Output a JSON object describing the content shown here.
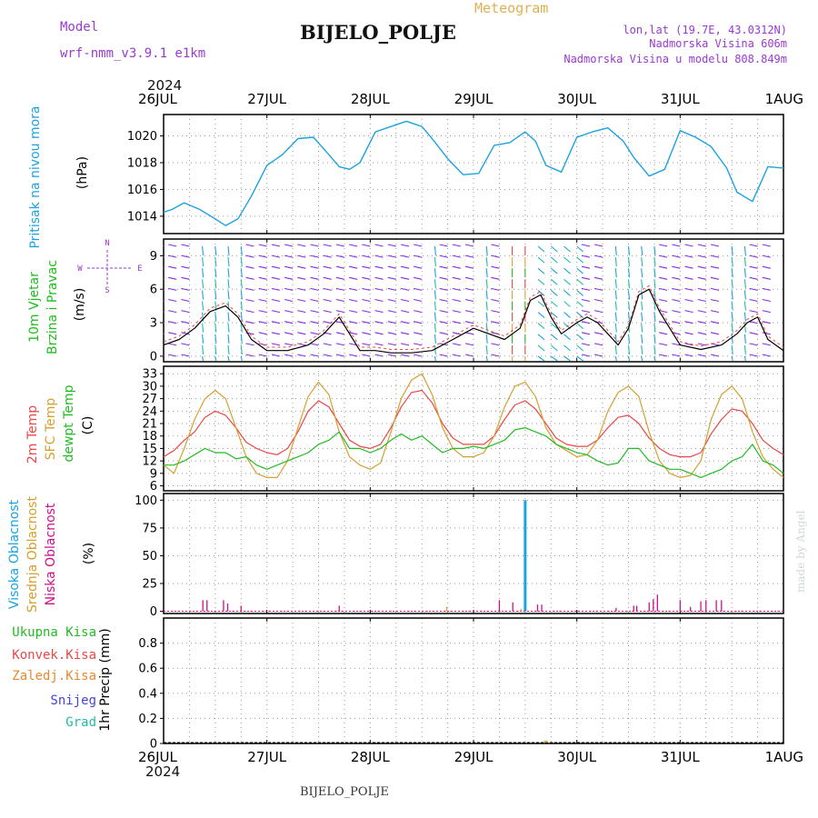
{
  "header": {
    "model_label": "Model",
    "model_name": "wrf-nmm_v3.9.1  e1km",
    "title": "BIJELO_POLJE",
    "subtitle": "Meteogram",
    "location": "lon,lat (19.7E, 43.0312N)",
    "altitude": "Nadmorska Visina 606m",
    "model_altitude": "Nadmorska Visina u modelu 808.849m",
    "year_top": "2024",
    "year_bottom": "2024",
    "footer_station": "BIJELO_POLJE",
    "watermark": "made by Angel"
  },
  "time_axis": {
    "labels": [
      "26JUL",
      "27JUL",
      "28JUL",
      "29JUL",
      "30JUL",
      "31JUL",
      "1AUG"
    ],
    "days": 6
  },
  "colors": {
    "pressure": "#1aa3e0",
    "wind_label": "#22bb22",
    "temp2m": "#e84848",
    "sfc_temp": "#d4a030",
    "dewpt": "#22bb22",
    "high_cloud": "#1aa3e0",
    "mid_cloud": "#d4a030",
    "low_cloud": "#cc1188",
    "total_precip": "#22bb22",
    "conv_precip": "#e84848",
    "frz_precip": "#e88830",
    "snow": "#4444dd",
    "hail": "#22bbaa",
    "header_purple": "#9a3ad0",
    "subtitle": "#e0b050"
  },
  "chart_data": [
    {
      "type": "line",
      "name": "pressure",
      "ylabel_lines": [
        "Pritisak na nivou mora",
        "(hPa)"
      ],
      "yticks": [
        1014,
        1016,
        1018,
        1020
      ],
      "ylim": [
        1012.7,
        1021.6
      ],
      "x_days": [
        0,
        0.08,
        0.2,
        0.35,
        0.5,
        0.6,
        0.72,
        0.85,
        1.0,
        1.15,
        1.3,
        1.45,
        1.6,
        1.7,
        1.8,
        1.9,
        2.05,
        2.2,
        2.35,
        2.5,
        2.62,
        2.75,
        2.9,
        3.05,
        3.2,
        3.35,
        3.5,
        3.6,
        3.7,
        3.85,
        4.0,
        4.15,
        4.3,
        4.45,
        4.55,
        4.7,
        4.85,
        5.0,
        5.15,
        5.3,
        5.45,
        5.55,
        5.7,
        5.85,
        6.0
      ],
      "values": [
        1014.3,
        1014.5,
        1015.0,
        1014.5,
        1013.8,
        1013.3,
        1013.8,
        1015.5,
        1017.8,
        1018.6,
        1019.8,
        1019.9,
        1018.6,
        1017.7,
        1017.5,
        1018.0,
        1020.3,
        1020.7,
        1021.1,
        1020.7,
        1019.6,
        1018.3,
        1017.1,
        1017.2,
        1019.3,
        1019.5,
        1020.3,
        1019.6,
        1017.8,
        1017.3,
        1019.9,
        1020.3,
        1020.6,
        1019.6,
        1018.4,
        1017.0,
        1017.5,
        1020.4,
        1019.9,
        1019.2,
        1017.6,
        1015.8,
        1015.1,
        1017.7,
        1017.6
      ]
    },
    {
      "type": "line",
      "name": "wind",
      "ylabel_lines": [
        "10m Vjetar",
        "Brzina i Pravac",
        "(m/s)"
      ],
      "compass": {
        "n": "N",
        "s": "S",
        "w": "W",
        "e": "E"
      },
      "yticks": [
        0,
        3,
        6,
        9
      ],
      "ylim": [
        -0.5,
        10.5
      ],
      "x_days": [
        0,
        0.15,
        0.3,
        0.45,
        0.6,
        0.72,
        0.85,
        1.0,
        1.2,
        1.4,
        1.55,
        1.7,
        1.8,
        1.9,
        2.05,
        2.2,
        2.4,
        2.6,
        2.8,
        3.0,
        3.15,
        3.3,
        3.45,
        3.55,
        3.65,
        3.75,
        3.85,
        4.0,
        4.1,
        4.2,
        4.3,
        4.4,
        4.5,
        4.6,
        4.7,
        4.8,
        5.0,
        5.2,
        5.4,
        5.55,
        5.65,
        5.75,
        5.85,
        6.0
      ],
      "values": [
        1.0,
        1.5,
        2.5,
        4.0,
        4.5,
        3.5,
        1.5,
        0.5,
        0.5,
        1.0,
        2.0,
        3.5,
        2.0,
        0.5,
        0.5,
        0.3,
        0.3,
        0.5,
        1.5,
        2.5,
        2.0,
        1.5,
        2.5,
        5.0,
        5.5,
        3.5,
        2.0,
        3.0,
        3.5,
        3.0,
        2.0,
        1.0,
        2.5,
        5.5,
        6.0,
        4.0,
        1.0,
        0.6,
        1.0,
        2.0,
        3.0,
        3.5,
        1.5,
        0.5
      ]
    },
    {
      "type": "line",
      "name": "temperature",
      "ylabel_lines": [
        "2m Temp",
        "SFC Temp",
        "dewpt Temp",
        "(C)"
      ],
      "yticks": [
        6,
        9,
        12,
        15,
        18,
        21,
        24,
        27,
        30,
        33
      ],
      "ylim": [
        4.8,
        34.8
      ],
      "x_days": [
        0,
        0.1,
        0.2,
        0.3,
        0.4,
        0.5,
        0.6,
        0.7,
        0.8,
        0.9,
        1.0,
        1.1,
        1.2,
        1.3,
        1.4,
        1.5,
        1.6,
        1.7,
        1.8,
        1.9,
        2.0,
        2.1,
        2.2,
        2.3,
        2.4,
        2.5,
        2.6,
        2.7,
        2.8,
        2.9,
        3.0,
        3.1,
        3.2,
        3.3,
        3.4,
        3.5,
        3.6,
        3.7,
        3.8,
        3.9,
        4.0,
        4.1,
        4.2,
        4.3,
        4.4,
        4.5,
        4.6,
        4.7,
        4.8,
        4.9,
        5.0,
        5.1,
        5.2,
        5.3,
        5.4,
        5.5,
        5.6,
        5.7,
        5.8,
        5.9,
        6.0
      ],
      "series": [
        {
          "name": "2m Temp",
          "color_key": "temp2m",
          "values": [
            13,
            14.5,
            17,
            19,
            22.5,
            24,
            23,
            20,
            16.5,
            15,
            14,
            13.5,
            15,
            19,
            24,
            26.5,
            25,
            21,
            17,
            15.5,
            15,
            16,
            20,
            25,
            28.5,
            29,
            26,
            21,
            17.5,
            16,
            16,
            16,
            18,
            22,
            25.5,
            26.5,
            24.5,
            21,
            17.5,
            16,
            15.5,
            15.5,
            17,
            20,
            22.5,
            23,
            21,
            17.5,
            15,
            13.5,
            13,
            13,
            14,
            18.5,
            22,
            24.5,
            24,
            21,
            17,
            15,
            13.5
          ]
        },
        {
          "name": "SFC Temp",
          "color_key": "sfc_temp",
          "values": [
            11,
            9,
            15,
            22,
            27,
            29,
            27,
            20,
            13,
            9,
            8,
            8,
            12,
            20,
            27.5,
            31,
            28,
            19,
            13,
            11,
            10,
            11.5,
            19,
            27,
            31.5,
            33,
            28,
            20,
            15,
            13,
            13,
            14,
            18,
            25,
            30,
            31,
            27.5,
            20,
            16,
            14.5,
            13,
            13.5,
            17,
            24,
            28.5,
            30,
            27.5,
            19,
            12,
            9,
            8,
            8.5,
            12,
            22,
            28,
            30,
            27,
            19,
            13,
            10,
            8
          ]
        },
        {
          "name": "dewpt Temp",
          "color_key": "dewpt",
          "values": [
            11,
            11,
            12,
            13.5,
            15,
            14,
            14,
            12.5,
            13,
            11,
            10,
            11,
            12,
            13,
            14,
            16,
            17,
            19,
            15,
            15,
            14,
            15,
            17,
            18.5,
            17,
            18,
            16,
            14,
            15,
            15,
            15.5,
            15,
            16,
            17,
            19.5,
            20,
            19,
            18,
            16,
            15,
            14,
            13.5,
            12,
            11,
            11.5,
            15,
            15,
            12,
            11,
            10,
            10,
            9,
            8,
            9,
            10,
            12,
            13,
            16,
            12,
            11,
            9
          ]
        }
      ]
    },
    {
      "type": "bar",
      "name": "cloud",
      "ylabel_lines": [
        "Visoka Oblacnost",
        "Srednja Oblacnost",
        "Niska Oblacnost",
        "(%)"
      ],
      "yticks": [
        0,
        25,
        50,
        75,
        100
      ],
      "ylim": [
        -2,
        106
      ],
      "high_cloud": [
        {
          "x": 3.5,
          "value": 100
        }
      ],
      "mid_cloud": [
        {
          "x": 2.74,
          "value": 4
        },
        {
          "x": 3.46,
          "value": 2
        }
      ],
      "low_cloud": [
        {
          "x": 0.38,
          "value": 10
        },
        {
          "x": 0.42,
          "value": 10
        },
        {
          "x": 0.58,
          "value": 10
        },
        {
          "x": 0.62,
          "value": 7
        },
        {
          "x": 0.75,
          "value": 5
        },
        {
          "x": 1.7,
          "value": 5
        },
        {
          "x": 3.25,
          "value": 10
        },
        {
          "x": 3.38,
          "value": 8
        },
        {
          "x": 3.62,
          "value": 6
        },
        {
          "x": 3.66,
          "value": 6
        },
        {
          "x": 4.38,
          "value": 3
        },
        {
          "x": 4.55,
          "value": 5
        },
        {
          "x": 4.58,
          "value": 5
        },
        {
          "x": 4.7,
          "value": 8
        },
        {
          "x": 4.74,
          "value": 11
        },
        {
          "x": 4.78,
          "value": 15
        },
        {
          "x": 5.0,
          "value": 10
        },
        {
          "x": 5.1,
          "value": 4
        },
        {
          "x": 5.2,
          "value": 9
        },
        {
          "x": 5.25,
          "value": 10
        },
        {
          "x": 5.35,
          "value": 10
        },
        {
          "x": 5.4,
          "value": 10
        }
      ]
    },
    {
      "type": "bar",
      "name": "precip",
      "ylabel_lines": [
        "1hr Precip (mm)"
      ],
      "legend": [
        "Ukupna Kisa",
        "Konvek.Kisa",
        "Zaledj.Kisa",
        "Snijeg",
        "Grad"
      ],
      "yticks": [
        0,
        0.2,
        0.4,
        0.6,
        0.8
      ],
      "ytick_labels": [
        "0",
        "0.2",
        "0.4",
        "0.6",
        "0.8"
      ],
      "ylim": [
        0,
        1.0
      ],
      "bars": [
        {
          "x": 3.7,
          "value": 0.005
        }
      ]
    }
  ]
}
